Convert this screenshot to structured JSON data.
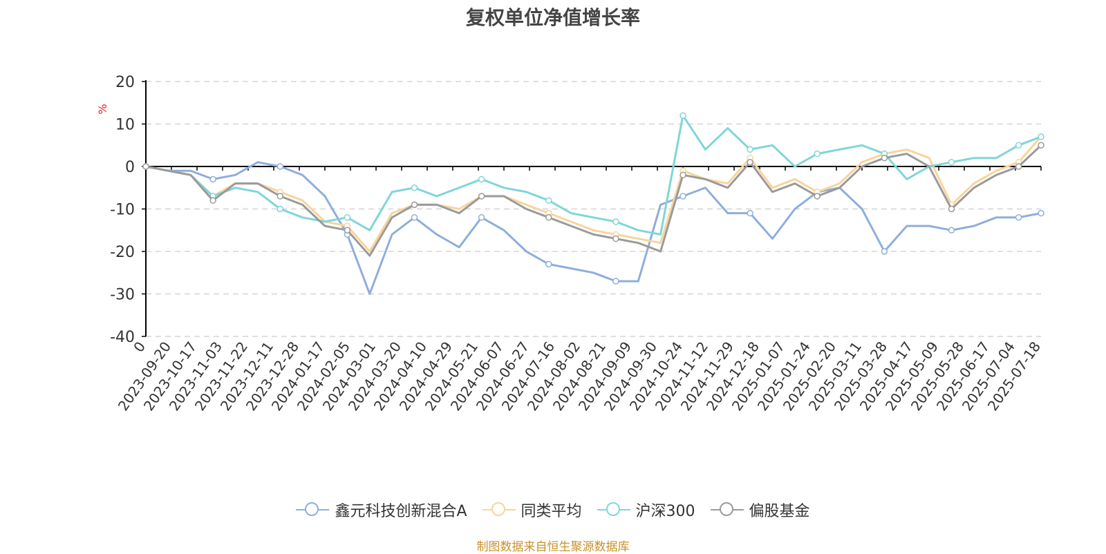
{
  "title": "复权单位净值增长率",
  "source": "制图数据来自恒生聚源数据库",
  "colors": {
    "fund": "#8eaedc",
    "peer": "#f9d49b",
    "csi300": "#7fd6d8",
    "equity": "#9a9a9a",
    "grid": "#cccccc",
    "axis": "#000000",
    "unit": "#e02020"
  },
  "chart_data": {
    "type": "line",
    "title": "复权单位净值增长率",
    "ylabel": "%",
    "xlabel": "",
    "ylim": [
      -40,
      20
    ],
    "yticks": [
      20,
      10,
      0,
      -10,
      -20,
      -30,
      -40
    ],
    "grid": true,
    "legend_position": "bottom",
    "xtick_labels": [
      "0",
      "2023-09-20",
      "2023-10-17",
      "2023-11-03",
      "2023-11-22",
      "2023-12-11",
      "2023-12-28",
      "2024-01-17",
      "2024-02-05",
      "2024-03-01",
      "2024-03-20",
      "2024-04-10",
      "2024-04-29",
      "2024-05-21",
      "2024-06-07",
      "2024-06-27",
      "2024-07-16",
      "2024-08-02",
      "2024-08-21",
      "2024-09-09",
      "2024-09-30",
      "2024-10-24",
      "2024-11-12",
      "2024-11-29",
      "2024-12-18",
      "2025-01-07",
      "2025-01-24",
      "2025-02-20",
      "2025-03-11",
      "2025-03-28",
      "2025-04-17",
      "2025-05-09",
      "2025-05-28",
      "2025-06-17",
      "2025-07-04",
      "2025-07-18"
    ],
    "series": [
      {
        "name": "鑫元科技创新混合A",
        "color": "#8eaedc",
        "values": [
          0,
          -1,
          -1,
          -3,
          -2,
          1,
          0,
          -2,
          -7,
          -16,
          -30,
          -16,
          -12,
          -16,
          -19,
          -12,
          -15,
          -20,
          -23,
          -24,
          -25,
          -27,
          -27,
          -9,
          -7,
          -5,
          -11,
          -11,
          -17,
          -10,
          -6,
          -5,
          -10,
          -20,
          -14,
          -14,
          -15,
          -14,
          -12,
          -12,
          -11
        ]
      },
      {
        "name": "同类平均",
        "color": "#f9d49b",
        "values": [
          0,
          -1,
          -2,
          -7,
          -4,
          -4,
          -6,
          -8,
          -13,
          -14,
          -20,
          -11,
          -9,
          -9,
          -10,
          -7,
          -7,
          -9,
          -11,
          -13,
          -15,
          -16,
          -17,
          -18,
          -1,
          -3,
          -4,
          2,
          -5,
          -3,
          -6,
          -4,
          1,
          3,
          4,
          2,
          -9,
          -4,
          -1,
          1,
          7
        ]
      },
      {
        "name": "沪深300",
        "color": "#7fd6d8",
        "values": [
          0,
          -1,
          -2,
          -7,
          -5,
          -6,
          -10,
          -12,
          -13,
          -12,
          -15,
          -6,
          -5,
          -7,
          -5,
          -3,
          -5,
          -6,
          -8,
          -11,
          -12,
          -13,
          -15,
          -16,
          12,
          4,
          9,
          4,
          5,
          0,
          3,
          4,
          5,
          3,
          -3,
          0,
          1,
          2,
          2,
          5,
          7
        ]
      },
      {
        "name": "偏股基金",
        "color": "#9a9a9a",
        "values": [
          0,
          -1,
          -2,
          -8,
          -4,
          -4,
          -7,
          -9,
          -14,
          -15,
          -21,
          -12,
          -9,
          -9,
          -11,
          -7,
          -7,
          -10,
          -12,
          -14,
          -16,
          -17,
          -18,
          -20,
          -2,
          -3,
          -5,
          1,
          -6,
          -4,
          -7,
          -5,
          0,
          2,
          3,
          0,
          -10,
          -5,
          -2,
          0,
          5
        ]
      }
    ]
  },
  "legend": [
    {
      "label": "鑫元科技创新混合A",
      "color": "#8eaedc"
    },
    {
      "label": "同类平均",
      "color": "#f9d49b"
    },
    {
      "label": "沪深300",
      "color": "#7fd6d8"
    },
    {
      "label": "偏股基金",
      "color": "#9a9a9a"
    }
  ]
}
